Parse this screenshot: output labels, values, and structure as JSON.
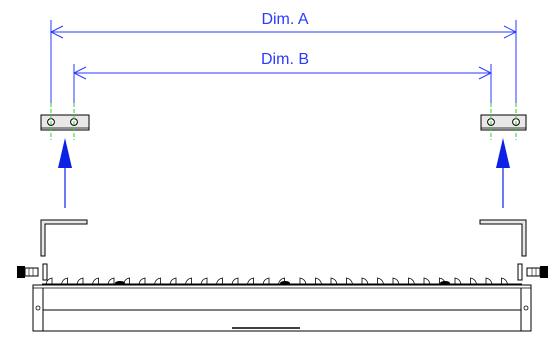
{
  "dimensions": {
    "dim_a": "Dim. A",
    "dim_b": "Dim. B"
  },
  "colors": {
    "dimension_line": "#2a3bff",
    "dimension_text": "#2a3bff",
    "insert_arrow": "#0b22e6",
    "centerline": "#33cc33",
    "outline": "#000000",
    "bracket_fill": "#e8e8e8",
    "body_fill": "#ffffff"
  }
}
